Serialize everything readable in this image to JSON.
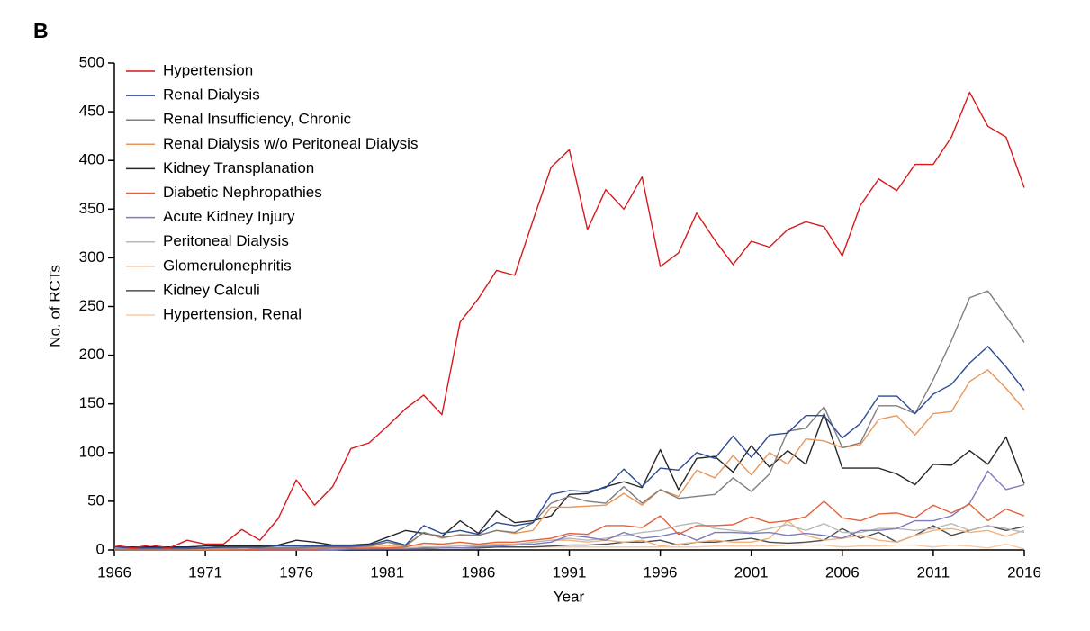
{
  "chart_data": {
    "type": "line",
    "panel_label": "B",
    "xlabel": "Year",
    "ylabel": "No. of RCTs",
    "x": [
      1966,
      1967,
      1968,
      1969,
      1970,
      1971,
      1972,
      1973,
      1974,
      1975,
      1976,
      1977,
      1978,
      1979,
      1980,
      1981,
      1982,
      1983,
      1984,
      1985,
      1986,
      1987,
      1988,
      1989,
      1990,
      1991,
      1992,
      1993,
      1994,
      1995,
      1996,
      1997,
      1998,
      1999,
      2000,
      2001,
      2002,
      2003,
      2004,
      2005,
      2006,
      2007,
      2008,
      2009,
      2010,
      2011,
      2012,
      2013,
      2014,
      2015,
      2016
    ],
    "xlim": [
      1966,
      2016
    ],
    "xticks": [
      1966,
      1971,
      1976,
      1981,
      1986,
      1991,
      1996,
      2001,
      2006,
      2011,
      2016
    ],
    "ylim": [
      0,
      500
    ],
    "yticks": [
      0,
      50,
      100,
      150,
      200,
      250,
      300,
      350,
      400,
      450,
      500
    ],
    "legend": "upper left",
    "series": [
      {
        "name": "Hypertension",
        "color": "#d7191c",
        "values": [
          5,
          2,
          5,
          2,
          10,
          6,
          6,
          21,
          10,
          32,
          72,
          46,
          65,
          104,
          110,
          127,
          145,
          159,
          139,
          234,
          258,
          287,
          282,
          338,
          393,
          411,
          329,
          370,
          350,
          383,
          291,
          305,
          346,
          318,
          293,
          317,
          311,
          329,
          337,
          332,
          302,
          354,
          381,
          369,
          396,
          396,
          424,
          470,
          435,
          424,
          372
        ]
      },
      {
        "name": "Renal Dialysis",
        "color": "#2c4a94",
        "values": [
          3,
          2,
          2,
          2,
          2,
          2,
          3,
          3,
          3,
          4,
          4,
          4,
          4,
          4,
          5,
          10,
          5,
          25,
          17,
          20,
          16,
          28,
          25,
          28,
          57,
          61,
          60,
          64,
          83,
          65,
          84,
          82,
          100,
          94,
          117,
          95,
          118,
          120,
          138,
          138,
          115,
          130,
          158,
          158,
          140,
          160,
          170,
          192,
          209,
          188,
          164
        ]
      },
      {
        "name": "Renal Insufficiency, Chronic",
        "color": "#7f7f7f",
        "values": [
          1,
          1,
          1,
          1,
          1,
          2,
          2,
          2,
          2,
          2,
          2,
          3,
          3,
          3,
          4,
          8,
          4,
          18,
          13,
          15,
          15,
          20,
          18,
          28,
          48,
          55,
          50,
          48,
          65,
          48,
          62,
          53,
          55,
          57,
          74,
          60,
          78,
          122,
          125,
          147,
          105,
          110,
          148,
          148,
          140,
          175,
          215,
          259,
          266,
          240,
          213
        ]
      },
      {
        "name": "Renal Dialysis w/o Peritoneal Dialysis",
        "color": "#e8965a",
        "values": [
          1,
          1,
          1,
          1,
          1,
          1,
          1,
          2,
          2,
          2,
          2,
          2,
          3,
          3,
          3,
          8,
          5,
          18,
          12,
          16,
          15,
          20,
          17,
          20,
          44,
          44,
          45,
          46,
          58,
          46,
          62,
          55,
          82,
          74,
          97,
          77,
          100,
          88,
          114,
          112,
          105,
          108,
          134,
          138,
          118,
          140,
          142,
          173,
          185,
          166,
          144
        ]
      },
      {
        "name": "Kidney Transplanation",
        "color": "#262626",
        "values": [
          3,
          3,
          3,
          3,
          3,
          4,
          4,
          4,
          4,
          5,
          10,
          8,
          5,
          5,
          6,
          13,
          20,
          17,
          14,
          30,
          17,
          40,
          28,
          30,
          35,
          57,
          58,
          65,
          70,
          64,
          103,
          62,
          94,
          96,
          80,
          107,
          85,
          102,
          88,
          140,
          84,
          84,
          84,
          78,
          67,
          88,
          87,
          102,
          88,
          116,
          68
        ]
      },
      {
        "name": "Diabetic Nephropathies",
        "color": "#e2623c",
        "values": [
          0,
          0,
          0,
          0,
          0,
          0,
          0,
          0,
          1,
          1,
          1,
          1,
          2,
          2,
          2,
          2,
          3,
          7,
          6,
          8,
          6,
          8,
          8,
          10,
          12,
          17,
          16,
          25,
          25,
          23,
          35,
          16,
          25,
          25,
          26,
          34,
          28,
          30,
          34,
          50,
          33,
          30,
          37,
          38,
          33,
          46,
          38,
          47,
          30,
          42,
          35
        ]
      },
      {
        "name": "Acute Kidney Injury",
        "color": "#7b7bbd",
        "values": [
          0,
          0,
          0,
          0,
          0,
          0,
          0,
          0,
          0,
          0,
          0,
          0,
          0,
          1,
          1,
          1,
          1,
          1,
          2,
          2,
          3,
          4,
          5,
          6,
          8,
          15,
          13,
          10,
          18,
          12,
          14,
          18,
          10,
          18,
          18,
          17,
          18,
          15,
          17,
          15,
          12,
          20,
          20,
          22,
          30,
          30,
          35,
          48,
          81,
          62,
          67
        ]
      },
      {
        "name": "Peritoneal Dialysis",
        "color": "#b8b8b8",
        "values": [
          0,
          0,
          0,
          0,
          0,
          0,
          0,
          0,
          1,
          1,
          1,
          1,
          1,
          1,
          1,
          2,
          2,
          3,
          3,
          4,
          4,
          5,
          5,
          8,
          10,
          12,
          10,
          12,
          15,
          18,
          20,
          25,
          28,
          22,
          20,
          18,
          22,
          26,
          20,
          27,
          18,
          18,
          22,
          22,
          20,
          22,
          27,
          20,
          25,
          22,
          18
        ]
      },
      {
        "name": "Glomerulonephritis",
        "color": "#f2b27c",
        "values": [
          1,
          1,
          1,
          1,
          1,
          2,
          2,
          2,
          2,
          2,
          3,
          3,
          3,
          3,
          3,
          4,
          4,
          5,
          5,
          5,
          5,
          6,
          6,
          8,
          10,
          10,
          8,
          10,
          8,
          10,
          4,
          6,
          8,
          10,
          8,
          8,
          12,
          30,
          15,
          10,
          12,
          15,
          10,
          8,
          15,
          20,
          22,
          18,
          20,
          14,
          20
        ]
      },
      {
        "name": "Kidney Calculi",
        "color": "#4d4d4d",
        "values": [
          0,
          0,
          0,
          0,
          0,
          0,
          0,
          0,
          0,
          0,
          0,
          1,
          1,
          1,
          1,
          1,
          1,
          2,
          2,
          2,
          2,
          3,
          3,
          3,
          4,
          5,
          5,
          6,
          8,
          8,
          10,
          5,
          8,
          8,
          10,
          12,
          8,
          7,
          8,
          10,
          22,
          12,
          18,
          8,
          15,
          25,
          15,
          20,
          25,
          20,
          24
        ]
      },
      {
        "name": "Hypertension, Renal",
        "color": "#f6cbaa",
        "values": [
          1,
          1,
          1,
          1,
          1,
          1,
          1,
          1,
          1,
          1,
          1,
          1,
          2,
          2,
          2,
          2,
          2,
          2,
          2,
          2,
          2,
          3,
          3,
          3,
          3,
          3,
          3,
          3,
          3,
          3,
          3,
          3,
          3,
          4,
          4,
          4,
          4,
          5,
          5,
          5,
          3,
          4,
          4,
          5,
          5,
          3,
          5,
          4,
          2,
          6,
          1
        ]
      }
    ]
  }
}
